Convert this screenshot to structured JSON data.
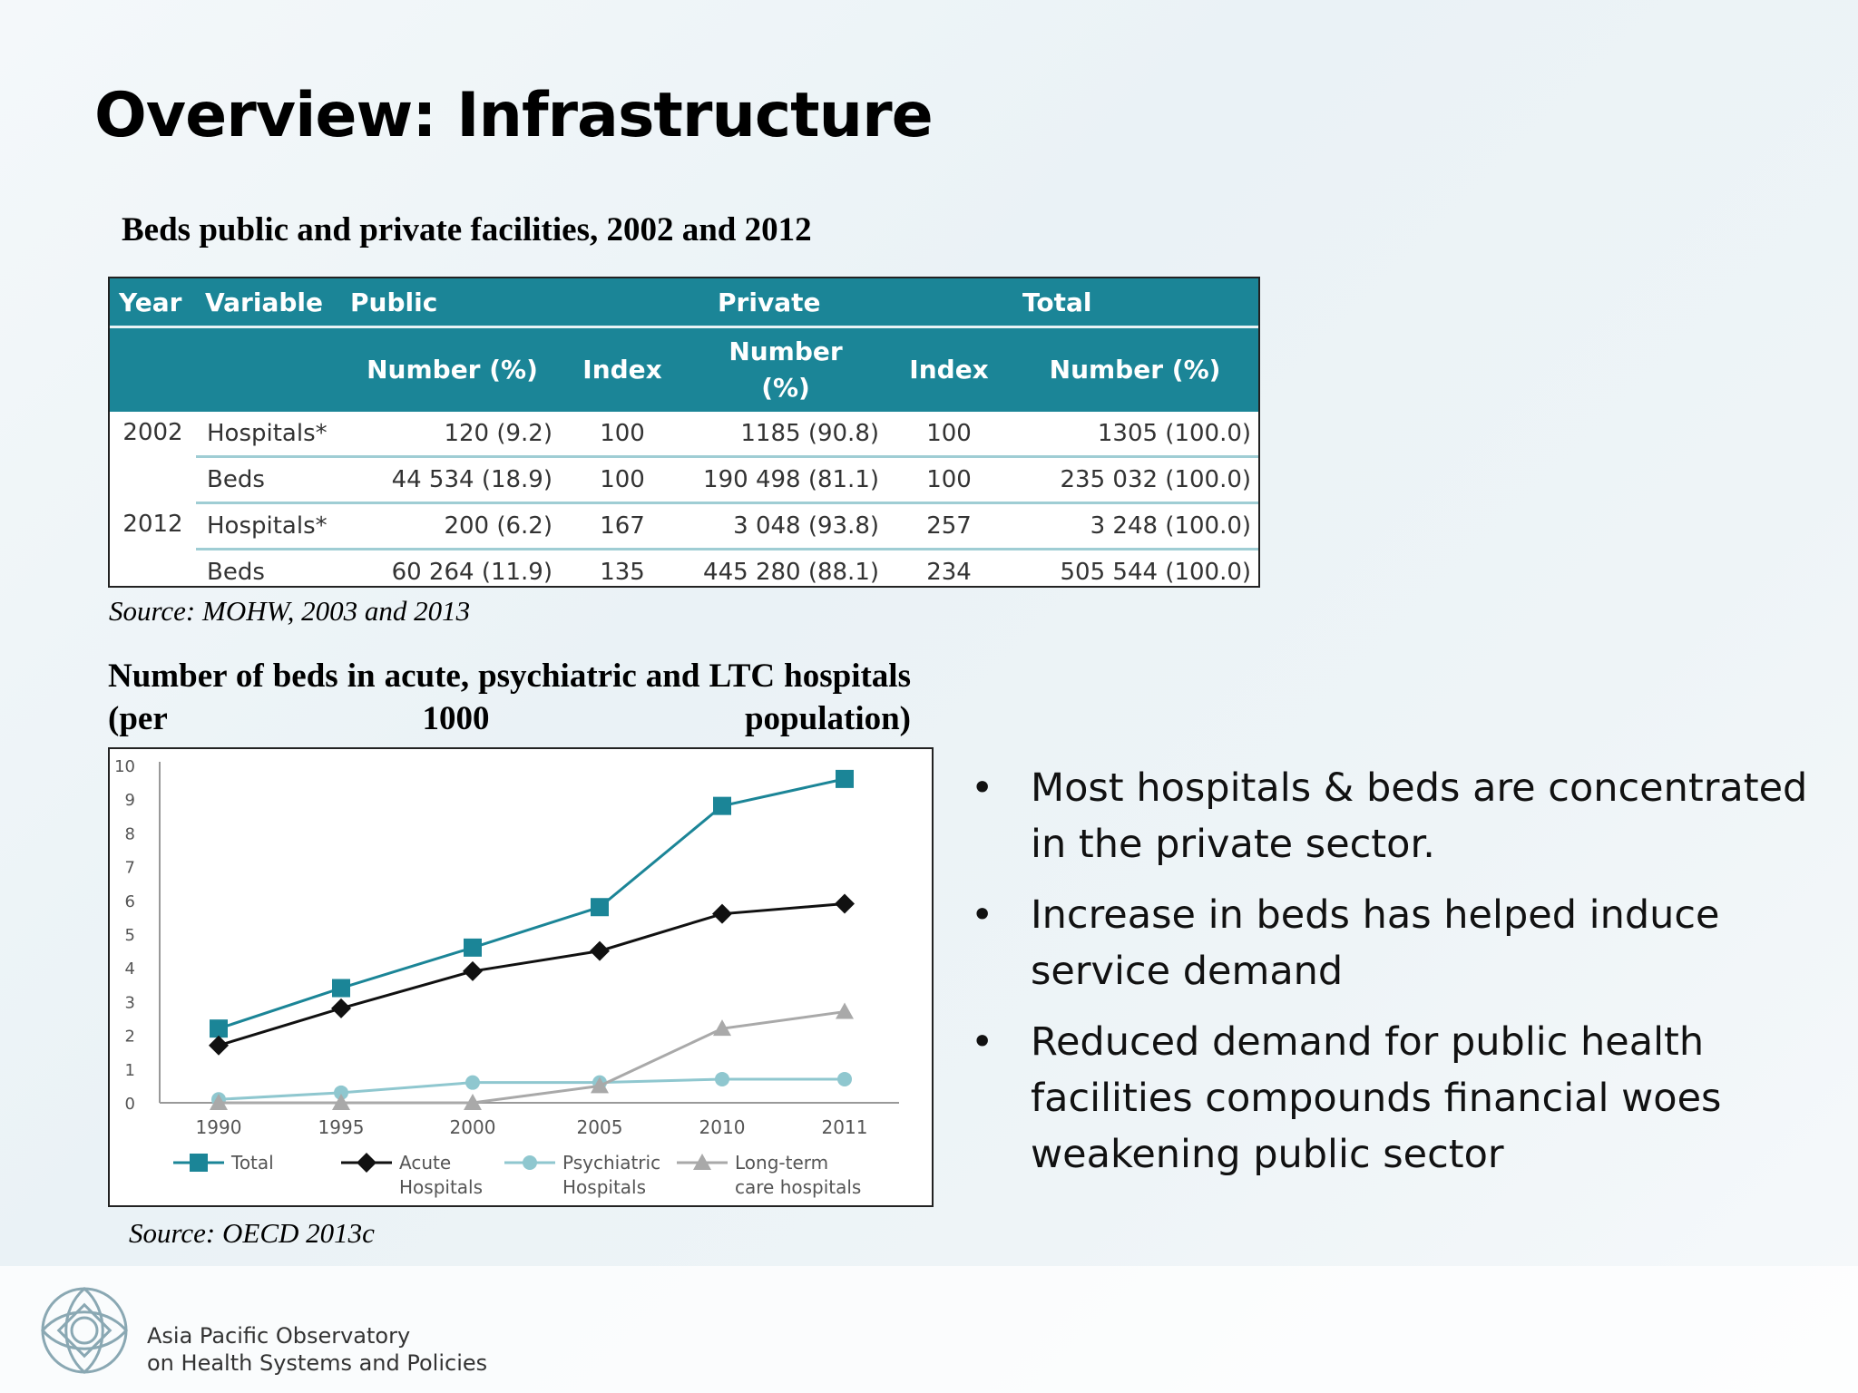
{
  "slide": {
    "title": "Overview: Infrastructure"
  },
  "table": {
    "title": "Beds public and private facilities, 2002 and 2012",
    "header_row1": [
      "Year",
      "Variable",
      "Public",
      "Private",
      "Total"
    ],
    "header_row2": [
      "Number (%)",
      "Index",
      "Number (%)",
      "Index",
      "Number (%)"
    ],
    "rows": [
      {
        "year": "2002",
        "variable": "Hospitals*",
        "pub_num": "120 (9.2)",
        "pub_idx": "100",
        "priv_num": "1185 (90.8)",
        "priv_idx": "100",
        "total": "1305 (100.0)"
      },
      {
        "year": "",
        "variable": "Beds",
        "pub_num": "44 534 (18.9)",
        "pub_idx": "100",
        "priv_num": "190 498 (81.1)",
        "priv_idx": "100",
        "total": "235 032 (100.0)"
      },
      {
        "year": "2012",
        "variable": "Hospitals*",
        "pub_num": "200 (6.2)",
        "pub_idx": "167",
        "priv_num": "3 048 (93.8)",
        "priv_idx": "257",
        "total": "3 248 (100.0)"
      },
      {
        "year": "",
        "variable": "Beds",
        "pub_num": "60 264 (11.9)",
        "pub_idx": "135",
        "priv_num": "445 280 (88.1)",
        "priv_idx": "234",
        "total": "505 544 (100.0)"
      }
    ],
    "source": "Source: MOHW, 2003 and 2013"
  },
  "chart_data": {
    "type": "line",
    "title": "Number of beds in acute, psychiatric and LTC hospitals (per 1000 population)",
    "x": [
      "1990",
      "1995",
      "2000",
      "2005",
      "2010",
      "2011"
    ],
    "ylim": [
      0,
      10
    ],
    "yticks": [
      0,
      1,
      2,
      3,
      4,
      5,
      6,
      7,
      8,
      9,
      10
    ],
    "grid": false,
    "legend_position": "bottom",
    "series": [
      {
        "name": "Total",
        "marker": "square",
        "color": "#1b8597",
        "values": [
          2.2,
          3.4,
          4.6,
          5.8,
          8.8,
          9.6
        ]
      },
      {
        "name": "Acute Hospitals",
        "marker": "diamond",
        "color": "#111111",
        "values": [
          1.7,
          2.8,
          3.9,
          4.5,
          5.6,
          5.9
        ]
      },
      {
        "name": "Psychiatric Hospitals",
        "marker": "circle",
        "color": "#8fc7cf",
        "values": [
          0.1,
          0.3,
          0.6,
          0.6,
          0.7,
          0.7
        ]
      },
      {
        "name": "Long-term care hospitals",
        "marker": "triangle",
        "color": "#a9a9a9",
        "values": [
          0.0,
          0.0,
          0.0,
          0.5,
          2.2,
          2.7
        ]
      }
    ],
    "legend": [
      {
        "line1": "Total",
        "line2": ""
      },
      {
        "line1": "Acute",
        "line2": "Hospitals"
      },
      {
        "line1": "Psychiatric",
        "line2": "Hospitals"
      },
      {
        "line1": "Long-term",
        "line2": "care hospitals"
      }
    ],
    "source": "Source: OECD 2013c"
  },
  "bullets": [
    {
      "line1": "Most hospitals & beds are concentrated",
      "line2": "in the private sector.",
      "line3": ""
    },
    {
      "line1": "Increase in beds has helped induce",
      "line2": "service demand",
      "line3": ""
    },
    {
      "line1": "Reduced demand for public health",
      "line2": "facilities compounds financial woes",
      "line3": "weakening public sector"
    }
  ],
  "bullet_symbol": "•",
  "footer": {
    "org_line1": "Asia Pacific Observatory",
    "org_line2": "on Health Systems and Policies",
    "logo_icon": "observatory-knot-logo-icon"
  }
}
